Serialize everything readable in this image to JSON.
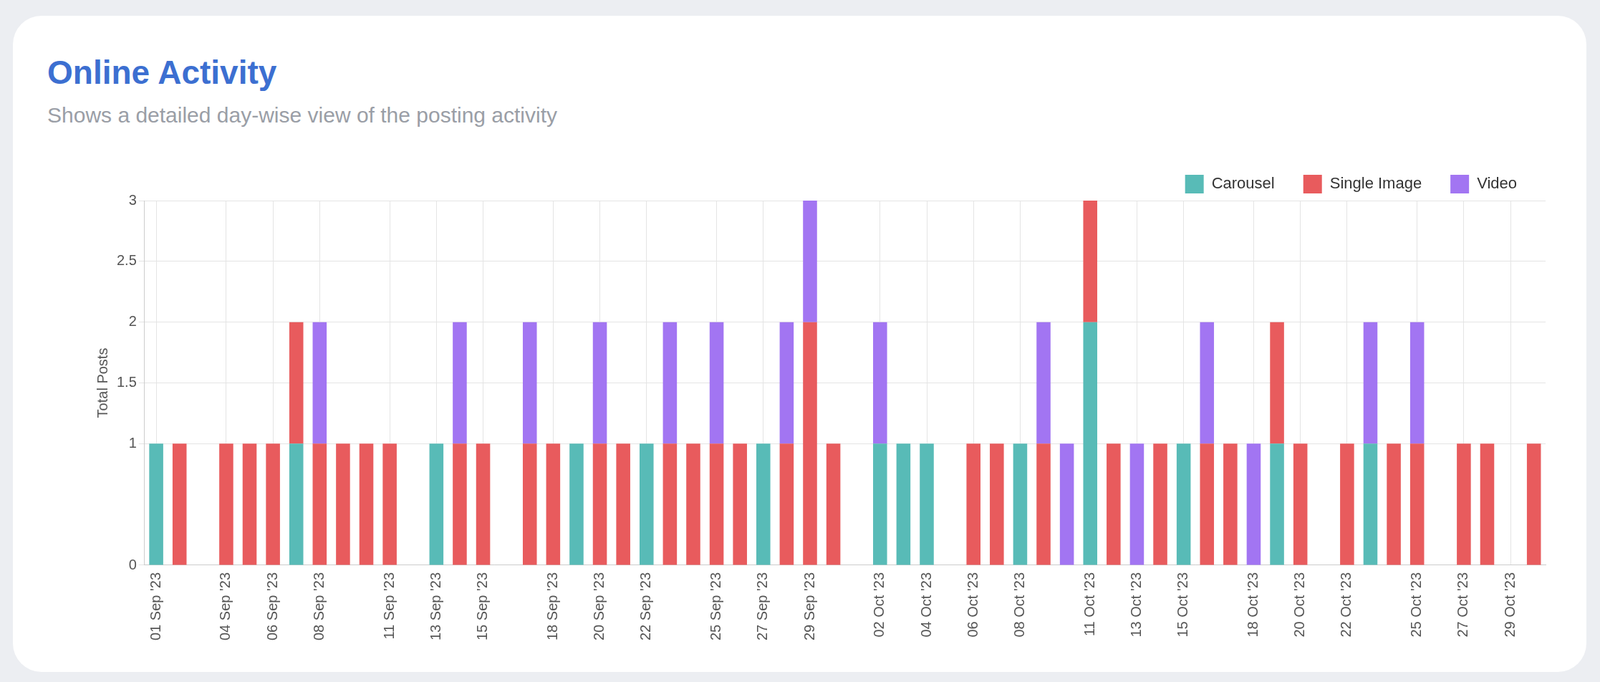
{
  "chart_data": {
    "type": "bar",
    "title": "Online Activity",
    "subtitle": "Shows a detailed day-wise view of the posting activity",
    "y_label": "Total Posts",
    "categories": [
      "01 Sep '23",
      null,
      null,
      "04 Sep '23",
      null,
      "06 Sep '23",
      null,
      "08 Sep '23",
      null,
      null,
      "11 Sep '23",
      null,
      "13 Sep '23",
      null,
      "15 Sep '23",
      null,
      null,
      "18 Sep '23",
      null,
      "20 Sep '23",
      null,
      "22 Sep '23",
      null,
      null,
      "25 Sep '23",
      null,
      "27 Sep '23",
      null,
      "29 Sep '23",
      null,
      null,
      "02 Oct '23",
      null,
      "04 Oct '23",
      null,
      "06 Oct '23",
      null,
      "08 Oct '23",
      null,
      null,
      "11 Oct '23",
      null,
      "13 Oct '23",
      null,
      "15 Oct '23",
      null,
      null,
      "18 Oct '23",
      null,
      "20 Oct '23",
      null,
      "22 Oct '23",
      null,
      null,
      "25 Oct '23",
      null,
      "27 Oct '23",
      null,
      "29 Oct '23",
      null
    ],
    "series": [
      {
        "name": "Carousel",
        "color": "#58bbb7",
        "values": [
          1,
          0,
          0,
          0,
          0,
          0,
          1,
          0,
          0,
          0,
          0,
          0,
          1,
          0,
          0,
          0,
          0,
          0,
          1,
          0,
          0,
          1,
          0,
          0,
          0,
          0,
          1,
          0,
          0,
          0,
          0,
          1,
          1,
          1,
          0,
          0,
          0,
          1,
          0,
          0,
          2,
          0,
          0,
          0,
          1,
          0,
          0,
          0,
          1,
          0,
          0,
          0,
          1,
          0,
          0,
          0,
          0,
          0,
          0,
          0
        ]
      },
      {
        "name": "Single Image",
        "color": "#e85b5d",
        "values": [
          0,
          1,
          0,
          1,
          1,
          1,
          1,
          1,
          1,
          1,
          1,
          0,
          0,
          1,
          1,
          0,
          1,
          1,
          0,
          1,
          1,
          0,
          1,
          1,
          1,
          1,
          0,
          1,
          2,
          1,
          0,
          0,
          0,
          0,
          0,
          1,
          1,
          0,
          1,
          0,
          1,
          1,
          0,
          1,
          0,
          1,
          1,
          0,
          1,
          1,
          0,
          1,
          0,
          1,
          1,
          0,
          1,
          1,
          0,
          1
        ]
      },
      {
        "name": "Video",
        "color": "#a275f2",
        "values": [
          0,
          0,
          0,
          0,
          0,
          0,
          0,
          1,
          0,
          0,
          0,
          0,
          0,
          1,
          0,
          0,
          1,
          0,
          0,
          1,
          0,
          0,
          1,
          0,
          1,
          0,
          0,
          1,
          1,
          0,
          0,
          1,
          0,
          0,
          0,
          0,
          0,
          0,
          1,
          1,
          0,
          0,
          1,
          0,
          0,
          1,
          0,
          1,
          0,
          0,
          0,
          0,
          1,
          0,
          1,
          0,
          0,
          0,
          0,
          0
        ]
      }
    ],
    "ylim": [
      0,
      3
    ],
    "yticks": [
      0,
      1,
      1.5,
      2,
      2.5,
      3
    ],
    "stacked": true,
    "grid": true,
    "legend": "top-right"
  }
}
